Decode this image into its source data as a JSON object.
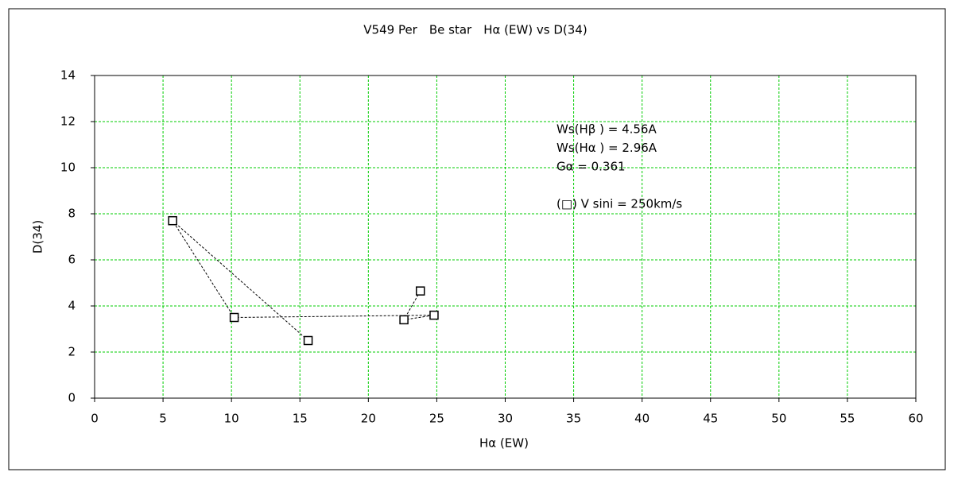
{
  "chart_data": {
    "type": "scatter",
    "title": "V549 Per　Be star　Hα (EW) vs D(34)",
    "x_label": "Hα (EW)",
    "y_label": "D(34)",
    "annotations": [
      "Ws(Hβ ) = 4.56A",
      "Ws(Hα ) = 2.96A",
      "Gα = 0.361",
      "(□) V sini = 250km/s"
    ],
    "series": [
      {
        "name": "V sini = 250km/s",
        "color": "#000000",
        "x": [
          15.6,
          5.7,
          10.2,
          24.8,
          22.6,
          23.8
        ],
        "values": [
          2.5,
          7.7,
          3.5,
          3.6,
          3.4,
          4.65
        ]
      }
    ],
    "xlim": [
      0,
      60
    ],
    "xticks": [
      0,
      5,
      10,
      15,
      20,
      25,
      30,
      35,
      40,
      45,
      50,
      55,
      60
    ],
    "ylim": [
      0,
      14
    ],
    "yticks": [
      0,
      2,
      4,
      6,
      8,
      10,
      12,
      14
    ],
    "grid": true,
    "grid_color": "#00cc00"
  }
}
